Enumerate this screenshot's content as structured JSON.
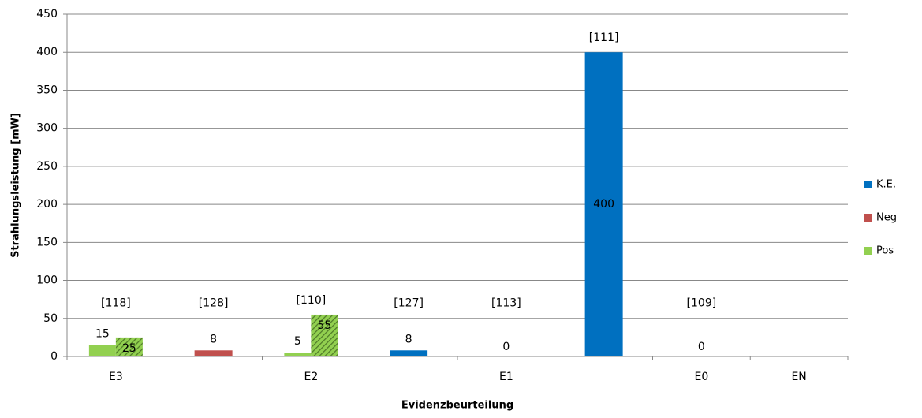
{
  "chart_data": {
    "type": "bar",
    "x_label": "Evidenzbeurteilung",
    "y_label": "Strahlungsleistung [mW]",
    "categories": [
      "E3",
      null,
      "E2",
      null,
      "E1",
      null,
      "E0",
      "EN"
    ],
    "group_labels": [
      "[118]",
      "[128]",
      "[110]",
      "[127]",
      "[113]",
      "[111]",
      "[109]",
      null
    ],
    "series": [
      {
        "name": "K.E.",
        "color": "#0070c0",
        "values": [
          null,
          null,
          null,
          8,
          0,
          400,
          0,
          null
        ]
      },
      {
        "name": "Neg",
        "color": "#c0504d",
        "values": [
          null,
          8,
          null,
          null,
          null,
          null,
          null,
          null
        ]
      },
      {
        "name": "Pos",
        "color": "#92d050",
        "values": [
          15,
          null,
          5,
          null,
          null,
          null,
          null,
          null
        ]
      },
      {
        "color": "#92d050",
        "pattern": "hatch",
        "values": [
          25,
          null,
          55,
          null,
          null,
          null,
          null,
          null
        ]
      }
    ],
    "ylim": [
      0,
      450
    ],
    "yticks": [
      0,
      50,
      100,
      150,
      200,
      250,
      300,
      350,
      400,
      450
    ],
    "grid": true,
    "legend": "right"
  }
}
